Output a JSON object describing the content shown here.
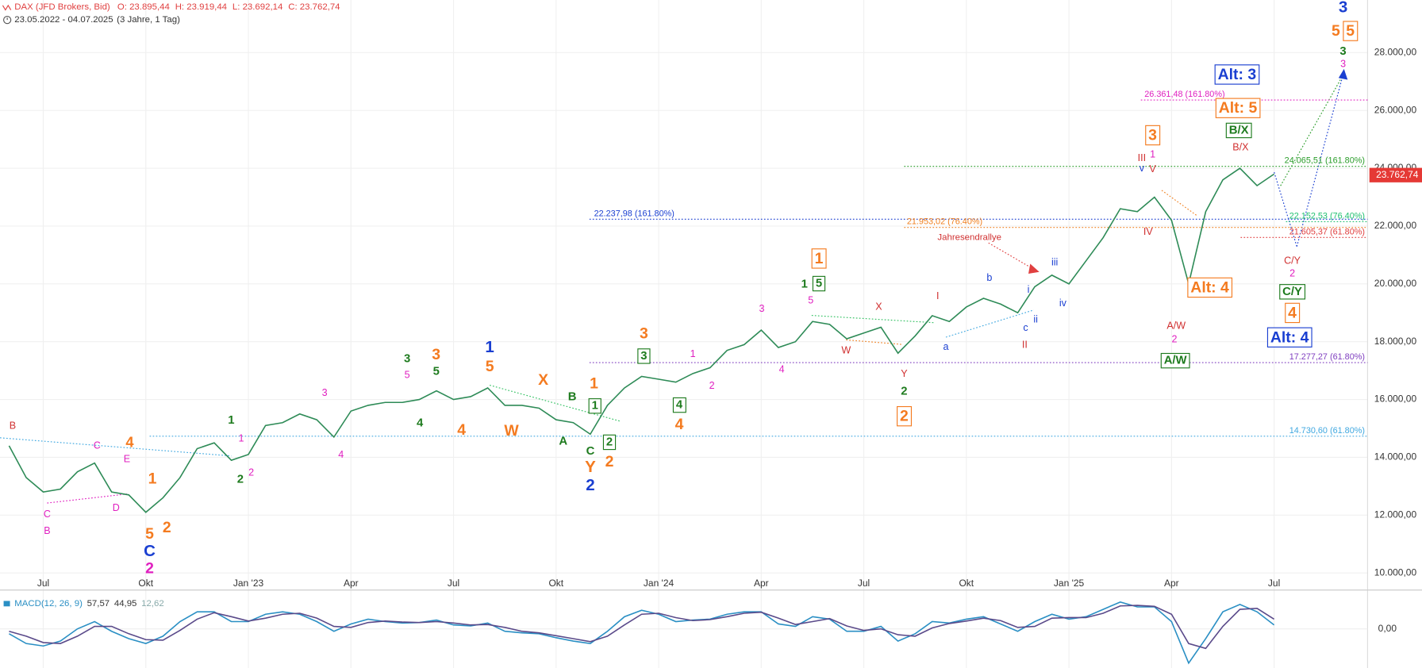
{
  "header": {
    "symbol": "DAX (JFD Brokers, Bid)",
    "ohlc": [
      "O: 23.895,44",
      "H: 23.919,44",
      "L: 23.692,14",
      "C: 23.762,74"
    ],
    "range": "23.05.2022 - 04.07.2025",
    "span": "(3 Jahre, 1 Tag)"
  },
  "chart_data": [
    {
      "type": "line",
      "color": "#2e8b57",
      "categories": [
        null,
        null,
        "Jul",
        null,
        null,
        null,
        null,
        null,
        "Okt",
        null,
        null,
        null,
        null,
        null,
        "Jan '23",
        null,
        null,
        null,
        null,
        null,
        "Apr",
        null,
        null,
        null,
        null,
        null,
        "Jul",
        null,
        null,
        null,
        null,
        null,
        "Okt",
        null,
        null,
        null,
        null,
        null,
        "Jan '24",
        null,
        null,
        null,
        null,
        null,
        "Apr",
        null,
        null,
        null,
        null,
        null,
        "Jul",
        null,
        null,
        null,
        null,
        null,
        "Okt",
        null,
        null,
        null,
        null,
        null,
        "Jan '25",
        null,
        null,
        null,
        null,
        null,
        "Apr",
        null,
        null,
        null,
        null,
        null,
        "Jul"
      ],
      "values": [
        14400,
        13300,
        12800,
        12900,
        13500,
        13800,
        12800,
        12700,
        12100,
        12600,
        13300,
        14300,
        14500,
        13900,
        14100,
        15100,
        15200,
        15500,
        15300,
        14700,
        15600,
        15800,
        15900,
        15900,
        16000,
        16300,
        16000,
        16100,
        16400,
        15800,
        15800,
        15700,
        15300,
        15200,
        14800,
        15800,
        16400,
        16800,
        16700,
        16600,
        16900,
        17100,
        17700,
        17900,
        18400,
        17800,
        18000,
        18700,
        18600,
        18100,
        18300,
        18500,
        17600,
        18200,
        18900,
        18700,
        19200,
        19500,
        19300,
        19000,
        19900,
        20300,
        20000,
        20800,
        21600,
        22600,
        22500,
        23000,
        22200,
        20000,
        22500,
        23600,
        24000,
        23400,
        23800
      ],
      "ylim": [
        9440,
        29820
      ],
      "yticks": [
        {
          "value": 10000,
          "label": "10.000,00"
        },
        {
          "value": 12000,
          "label": "12.000,00"
        },
        {
          "value": 14000,
          "label": "14.000,00"
        },
        {
          "value": 16000,
          "label": "16.000,00"
        },
        {
          "value": 18000,
          "label": "18.000,00"
        },
        {
          "value": 20000,
          "label": "20.000,00"
        },
        {
          "value": 22000,
          "label": "22.000,00"
        },
        {
          "value": 24000,
          "label": "24.000,00"
        },
        {
          "value": 26000,
          "label": "26.000,00"
        },
        {
          "value": 28000,
          "label": "28.000,00"
        }
      ],
      "grid": true,
      "last_price": {
        "value": 23762.74,
        "label": "23.762,74",
        "color": "#e53935"
      },
      "levels": [
        {
          "value": 26361.48,
          "label": "26.361,48 (161.80%)",
          "color": "#e020c0"
        },
        {
          "value": 24065.51,
          "label": "24.065,51 (161.80%)",
          "color": "#2a9d2a"
        },
        {
          "value": 22237.98,
          "label": "22.237,98 (161.80%)",
          "color": "#1a3fd1"
        },
        {
          "value": 22152.53,
          "label": "22.152,53 (76.40%)",
          "color": "#20c070"
        },
        {
          "value": 21953.02,
          "label": "21.953,02 (76.40%)",
          "color": "#f08020"
        },
        {
          "value": 21605.37,
          "label": "21.605,37 (61.80%)",
          "color": "#e04040"
        },
        {
          "value": 17277.27,
          "label": "17.277,27 (61.80%)",
          "color": "#8040c0"
        },
        {
          "value": 14730.6,
          "label": "14.730,60 (61.80%)",
          "color": "#40a8e0"
        }
      ],
      "annotations": [
        {
          "text": "B",
          "color": "#d03030"
        },
        {
          "text": "C",
          "color": "#e020c0"
        },
        {
          "text": "B",
          "color": "#e020c0"
        },
        {
          "text": "C",
          "color": "#e020c0"
        },
        {
          "text": "D",
          "color": "#e020c0"
        },
        {
          "text": "E",
          "color": "#e020c0"
        },
        {
          "text": "4",
          "color": "#f47b20"
        },
        {
          "text": "1",
          "color": "#f47b20"
        },
        {
          "text": "5",
          "color": "#f47b20"
        },
        {
          "text": "2",
          "color": "#f47b20"
        },
        {
          "text": "C",
          "color": "#1a3fd1"
        },
        {
          "text": "2",
          "color": "#e020c0"
        },
        {
          "text": "1",
          "color": "#1e7b1e"
        },
        {
          "text": "2",
          "color": "#1e7b1e"
        },
        {
          "text": "1",
          "color": "#e020c0"
        },
        {
          "text": "2",
          "color": "#e020c0"
        },
        {
          "text": "3",
          "color": "#e020c0"
        },
        {
          "text": "4",
          "color": "#e020c0"
        },
        {
          "text": "3",
          "color": "#1e7b1e"
        },
        {
          "text": "5",
          "color": "#e020c0"
        },
        {
          "text": "4",
          "color": "#1e7b1e"
        },
        {
          "text": "3",
          "color": "#f47b20"
        },
        {
          "text": "5",
          "color": "#1e7b1e"
        },
        {
          "text": "4",
          "color": "#f47b20"
        },
        {
          "text": "1",
          "color": "#1a3fd1"
        },
        {
          "text": "5",
          "color": "#f47b20"
        },
        {
          "text": "X",
          "color": "#f47b20"
        },
        {
          "text": "W",
          "color": "#f47b20"
        },
        {
          "text": "B",
          "color": "#1e7b1e"
        },
        {
          "text": "A",
          "color": "#1e7b1e"
        },
        {
          "text": "1",
          "color": "#f47b20"
        },
        {
          "text": "1",
          "color": "#1e7b1e"
        },
        {
          "text": "C",
          "color": "#1e7b1e"
        },
        {
          "text": "Y",
          "color": "#f47b20"
        },
        {
          "text": "2",
          "color": "#1e7b1e"
        },
        {
          "text": "2",
          "color": "#f47b20"
        },
        {
          "text": "2",
          "color": "#1a3fd1"
        },
        {
          "text": "3",
          "color": "#f47b20"
        },
        {
          "text": "3",
          "color": "#1e7b1e"
        },
        {
          "text": "1",
          "color": "#e020c0"
        },
        {
          "text": "2",
          "color": "#e020c0"
        },
        {
          "text": "4",
          "color": "#1e7b1e"
        },
        {
          "text": "4",
          "color": "#f47b20"
        },
        {
          "text": "3",
          "color": "#e020c0"
        },
        {
          "text": "4",
          "color": "#e020c0"
        },
        {
          "text": "1",
          "color": "#1e7b1e"
        },
        {
          "text": "5",
          "color": "#1e7b1e"
        },
        {
          "text": "1",
          "color": "#f47b20"
        },
        {
          "text": "5",
          "color": "#e020c0"
        },
        {
          "text": "X",
          "color": "#d03030"
        },
        {
          "text": "W",
          "color": "#d03030"
        },
        {
          "text": "I",
          "color": "#d03030"
        },
        {
          "text": "Y",
          "color": "#d03030"
        },
        {
          "text": "2",
          "color": "#1e7b1e"
        },
        {
          "text": "2",
          "color": "#f47b20"
        },
        {
          "text": "a",
          "color": "#1a3fd1"
        },
        {
          "text": "b",
          "color": "#1a3fd1"
        },
        {
          "text": "c",
          "color": "#1a3fd1"
        },
        {
          "text": "i",
          "color": "#1a3fd1"
        },
        {
          "text": "ii",
          "color": "#1a3fd1"
        },
        {
          "text": "iii",
          "color": "#1a3fd1"
        },
        {
          "text": "iv",
          "color": "#1a3fd1"
        },
        {
          "text": "II",
          "color": "#d03030"
        },
        {
          "text": "Jahresendrallye",
          "color": "#d03030"
        },
        {
          "text": "III",
          "color": "#d03030"
        },
        {
          "text": "v",
          "color": "#1a3fd1"
        },
        {
          "text": "1",
          "color": "#e020c0"
        },
        {
          "text": "V",
          "color": "#d03030"
        },
        {
          "text": "3",
          "color": "#f47b20"
        },
        {
          "text": "IV",
          "color": "#d03030"
        },
        {
          "text": "Alt: 4",
          "color": "#f47b20"
        },
        {
          "text": "A/W",
          "color": "#d03030"
        },
        {
          "text": "2",
          "color": "#e020c0"
        },
        {
          "text": "A/W",
          "color": "#1e7b1e"
        },
        {
          "text": "B/X",
          "color": "#d03030"
        },
        {
          "text": "B/X",
          "color": "#1e7b1e"
        },
        {
          "text": "Alt: 5",
          "color": "#f47b20"
        },
        {
          "text": "Alt: 3",
          "color": "#1a3fd1"
        },
        {
          "text": "C/Y",
          "color": "#d03030"
        },
        {
          "text": "2",
          "color": "#e020c0"
        },
        {
          "text": "C/Y",
          "color": "#1e7b1e"
        },
        {
          "text": "4",
          "color": "#f47b20"
        },
        {
          "text": "Alt: 4",
          "color": "#1a3fd1"
        },
        {
          "text": "3",
          "color": "#1a3fd1"
        },
        {
          "text": "5",
          "color": "#f47b20"
        },
        {
          "text": "5",
          "color": "#f47b20"
        },
        {
          "text": "3",
          "color": "#1e7b1e"
        },
        {
          "text": "3",
          "color": "#e020c0"
        }
      ]
    },
    {
      "type": "line",
      "title": "MACD(12, 26, 9)",
      "readouts": [
        "57,57",
        "44,95",
        "12,62"
      ],
      "categories": [
        null,
        null,
        "Jul",
        null,
        null,
        null,
        null,
        null,
        "Okt",
        null,
        null,
        null,
        null,
        null,
        "Jan '23",
        null,
        null,
        null,
        null,
        null,
        "Apr",
        null,
        null,
        null,
        null,
        null,
        "Jul",
        null,
        null,
        null,
        null,
        null,
        "Okt",
        null,
        null,
        null,
        null,
        null,
        "Jan '24",
        null,
        null,
        null,
        null,
        null,
        "Apr",
        null,
        null,
        null,
        null,
        null,
        "Jul",
        null,
        null,
        null,
        null,
        null,
        "Okt",
        null,
        null,
        null,
        null,
        null,
        "Jan '25",
        null,
        null,
        null,
        null,
        null,
        "Apr",
        null,
        null,
        null,
        null,
        null,
        "Jul"
      ],
      "series": [
        {
          "color": "#2a8fc4",
          "values": [
            -100,
            -300,
            -350,
            -250,
            0,
            150,
            -50,
            -200,
            -300,
            -150,
            150,
            350,
            350,
            150,
            150,
            300,
            350,
            300,
            150,
            -50,
            100,
            200,
            150,
            120,
            130,
            180,
            80,
            60,
            120,
            -50,
            -80,
            -100,
            -180,
            -250,
            -300,
            -50,
            250,
            380,
            300,
            150,
            180,
            200,
            300,
            350,
            350,
            100,
            50,
            250,
            200,
            -50,
            -50,
            50,
            -250,
            -100,
            150,
            120,
            200,
            250,
            100,
            -50,
            150,
            300,
            200,
            250,
            400,
            550,
            450,
            450,
            150,
            -700,
            -200,
            350,
            500,
            350,
            80
          ]
        },
        {
          "color": "#5a4a8a",
          "values": [
            -50,
            -150,
            -280,
            -300,
            -150,
            50,
            50,
            -100,
            -220,
            -230,
            -30,
            200,
            330,
            250,
            160,
            220,
            300,
            320,
            220,
            50,
            30,
            130,
            160,
            140,
            130,
            150,
            120,
            80,
            90,
            30,
            -50,
            -80,
            -140,
            -200,
            -260,
            -150,
            80,
            300,
            320,
            230,
            170,
            190,
            250,
            320,
            340,
            220,
            90,
            150,
            210,
            60,
            -30,
            0,
            -120,
            -150,
            20,
            110,
            160,
            220,
            170,
            30,
            50,
            220,
            230,
            230,
            320,
            470,
            480,
            460,
            300,
            -300,
            -400,
            50,
            400,
            420,
            200
          ]
        }
      ],
      "ylim": [
        -800,
        720
      ],
      "yticks": [
        {
          "value": 0,
          "label": "0,00"
        }
      ]
    }
  ]
}
